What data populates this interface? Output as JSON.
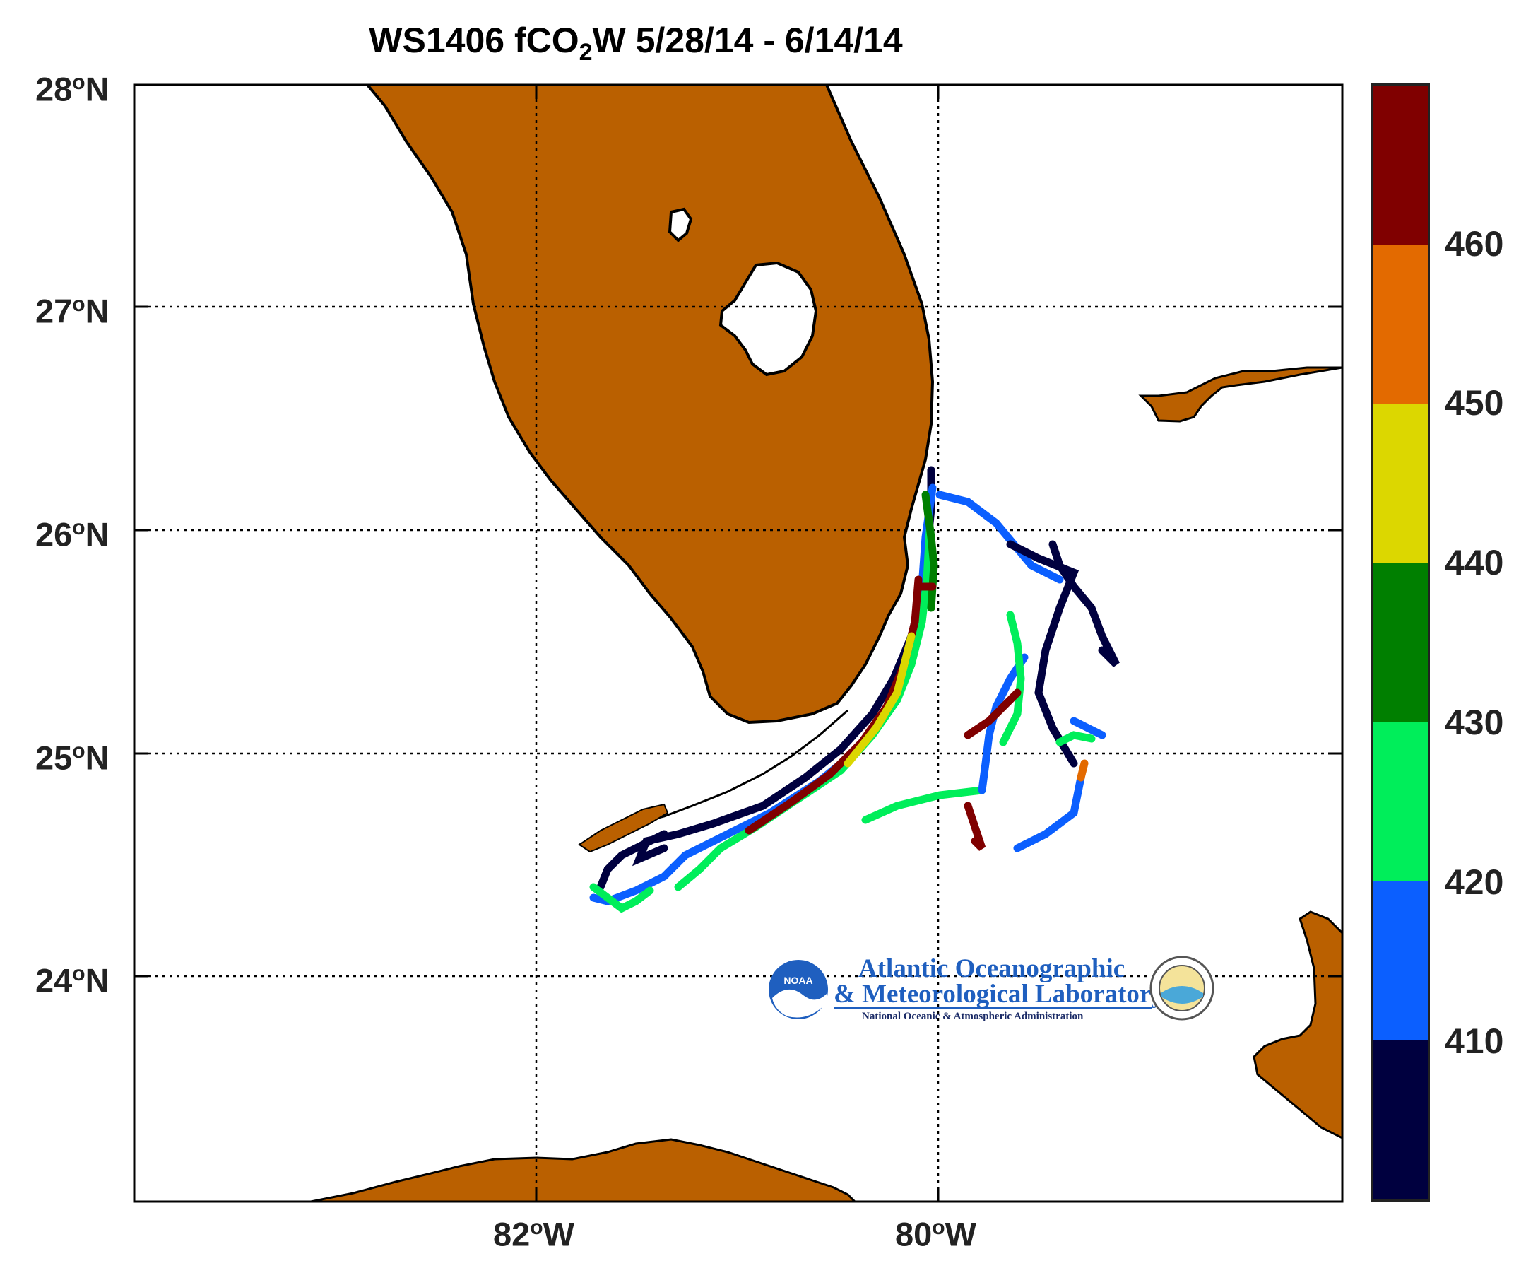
{
  "title": {
    "main": "WS1406 fCO",
    "sub": "2",
    "rest": "W 5/28/14 - 6/14/14"
  },
  "lat_labels": [
    {
      "deg": "28",
      "sup": "o",
      "hem": "N"
    },
    {
      "deg": "27",
      "sup": "o",
      "hem": "N"
    },
    {
      "deg": "26",
      "sup": "o",
      "hem": "N"
    },
    {
      "deg": "25",
      "sup": "o",
      "hem": "N"
    },
    {
      "deg": "24",
      "sup": "o",
      "hem": "N"
    }
  ],
  "lon_labels": [
    {
      "deg": "82",
      "sup": "o",
      "hem": "W"
    },
    {
      "deg": "80",
      "sup": "o",
      "hem": "W"
    }
  ],
  "colorbar": {
    "ticks": [
      "460",
      "450",
      "440",
      "430",
      "420",
      "410"
    ],
    "colors": [
      "#800000",
      "#e36a00",
      "#dcd700",
      "#007f00",
      "#00ee5a",
      "#0b5fff",
      "#00003f"
    ]
  },
  "colors": {
    "land": "#ba6000",
    "coast": "#000000",
    "grid": "#000000"
  },
  "logo": {
    "badge": "NOAA",
    "line1": "Atlantic Oceanographic",
    "line2": "& Meteorological Laboratory",
    "line3": "National Oceanic & Atmospheric Administration"
  }
}
